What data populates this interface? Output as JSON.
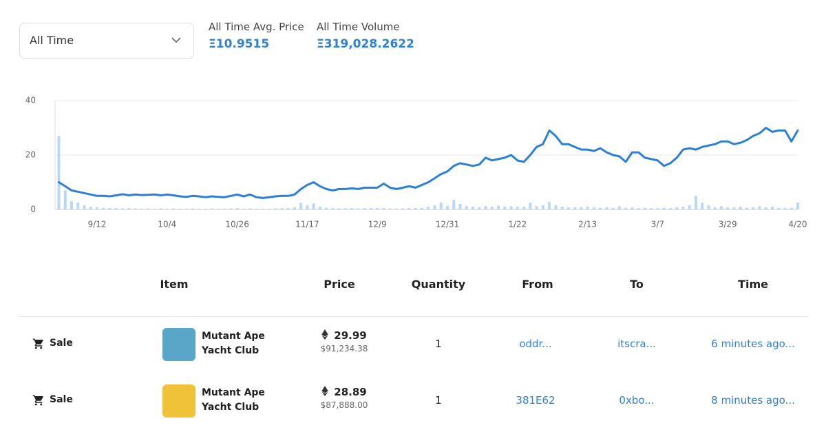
{
  "filter": {
    "selected": "All Time"
  },
  "stats": [
    {
      "label": "All Time Avg. Price",
      "value": "Ξ10.9515"
    },
    {
      "label": "All Time Volume",
      "value": "Ξ319,028.2622"
    }
  ],
  "chart_data": {
    "type": "line",
    "categories": [
      null,
      null,
      null,
      null,
      null,
      null,
      "9/12",
      null,
      null,
      null,
      null,
      null,
      null,
      null,
      null,
      null,
      null,
      "10/4",
      null,
      null,
      null,
      null,
      null,
      null,
      null,
      null,
      null,
      null,
      "10/26",
      null,
      null,
      null,
      null,
      null,
      null,
      null,
      null,
      null,
      null,
      "11/17",
      null,
      null,
      null,
      null,
      null,
      null,
      null,
      null,
      null,
      null,
      "12/9",
      null,
      null,
      null,
      null,
      null,
      null,
      null,
      null,
      null,
      null,
      "12/31",
      null,
      null,
      null,
      null,
      null,
      null,
      null,
      null,
      null,
      null,
      "1/22",
      null,
      null,
      null,
      null,
      null,
      null,
      null,
      null,
      null,
      null,
      "2/13",
      null,
      null,
      null,
      null,
      null,
      null,
      null,
      null,
      null,
      null,
      "3/7",
      null,
      null,
      null,
      null,
      null,
      null,
      null,
      null,
      null,
      null,
      "3/29",
      null,
      null,
      null,
      null,
      null,
      null,
      null,
      null,
      null,
      null,
      "4/20"
    ],
    "series": [
      {
        "type": "bar",
        "color": "#b9d8f7",
        "values": [
          27,
          7,
          3,
          2.5,
          1.5,
          1,
          0.8,
          0.6,
          0.5,
          0.5,
          0.4,
          0.5,
          0.4,
          0.3,
          0.4,
          0.3,
          0.4,
          0.3,
          0.4,
          0.3,
          0.3,
          0.4,
          0.3,
          0.3,
          0.4,
          0.3,
          0.3,
          0.4,
          0.5,
          0.3,
          0.4,
          0.3,
          0.3,
          0.3,
          0.4,
          0.5,
          0.5,
          0.8,
          2.5,
          1.5,
          2.2,
          1,
          0.6,
          0.5,
          0.4,
          0.4,
          0.5,
          0.4,
          0.5,
          0.5,
          0.5,
          0.6,
          0.4,
          0.4,
          0.4,
          0.5,
          0.5,
          0.6,
          1,
          1.5,
          2.5,
          1.2,
          3.5,
          2,
          1.2,
          1,
          0.8,
          1.2,
          1,
          1.3,
          1,
          1.2,
          1,
          1,
          2.5,
          1.2,
          1.5,
          2.8,
          1.5,
          1,
          0.8,
          0.8,
          0.8,
          1,
          0.8,
          0.6,
          0.8,
          0.6,
          1.2,
          0.6,
          0.8,
          0.5,
          0.6,
          0.5,
          0.5,
          0.6,
          0.5,
          0.8,
          1,
          1.5,
          5,
          2.5,
          1.5,
          0.8,
          1.2,
          0.8,
          0.8,
          1,
          0.6,
          0.8,
          1.2,
          0.8,
          1,
          0.6,
          0.5,
          0.6,
          2.5
        ]
      },
      {
        "type": "line",
        "color": "#2a7fd9",
        "values": [
          10,
          8.5,
          7,
          6.5,
          6,
          5.5,
          5,
          5,
          4.8,
          5.2,
          5.6,
          5.2,
          5.5,
          5.3,
          5.4,
          5.5,
          5.2,
          5.5,
          5.2,
          4.8,
          4.6,
          5,
          4.8,
          4.5,
          4.8,
          4.6,
          4.5,
          5,
          5.5,
          4.8,
          5.5,
          4.5,
          4.2,
          4.5,
          4.8,
          5,
          5,
          5.5,
          7.5,
          9,
          10,
          8.5,
          7.5,
          7,
          7.5,
          7.5,
          7.8,
          7.5,
          8,
          8,
          8,
          9.5,
          8,
          7.5,
          8,
          8.5,
          8,
          9,
          10,
          11.5,
          13,
          14,
          16,
          17,
          16.5,
          16,
          16.5,
          19,
          18,
          18.5,
          19,
          20,
          18,
          17.5,
          20,
          23,
          24,
          29,
          27,
          24,
          24,
          23,
          22,
          22,
          21.5,
          22.5,
          21,
          20,
          19.5,
          17.5,
          21,
          21,
          19,
          18.5,
          18,
          16,
          17,
          19,
          22,
          22.5,
          22,
          23,
          23.5,
          24,
          25,
          25,
          24,
          24.5,
          25.5,
          27,
          28,
          30,
          28.5,
          29,
          29,
          25,
          29
        ]
      }
    ],
    "ylim": [
      0,
      40
    ],
    "yticks": [
      0,
      20,
      40
    ],
    "grid": true
  },
  "table": {
    "headers": [
      "Item",
      "Price",
      "Quantity",
      "From",
      "To",
      "Time"
    ],
    "rows": [
      {
        "event": "Sale",
        "item": "Mutant Ape Yacht Club",
        "price": 29.99,
        "usd": "$91,234.38",
        "quantity": 1,
        "from": "oddr...",
        "to": "itscra...",
        "time": "6 minutes ago..."
      },
      {
        "event": "Sale",
        "item": "Mutant Ape Yacht Club",
        "price": 28.89,
        "usd": "$87,888.00",
        "quantity": 1,
        "from": "381E62",
        "to": "0xbo...",
        "time": "8 minutes ago..."
      }
    ]
  }
}
